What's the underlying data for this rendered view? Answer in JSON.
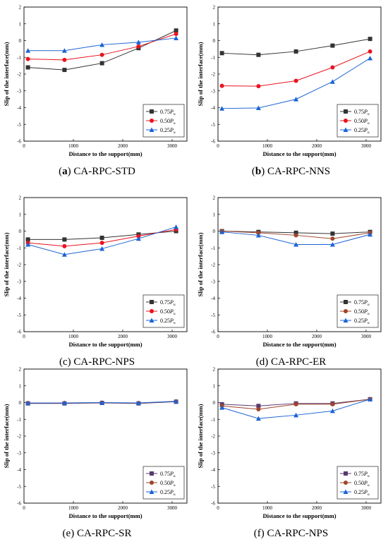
{
  "chart_data": [
    {
      "type": "line",
      "label": "a",
      "name": "CA-RPC-STD",
      "xlabel": "Distance to the support(mm)",
      "ylabel": "Slip of the interface(mm)",
      "xlim": [
        0,
        3300
      ],
      "ylim": [
        -6,
        2
      ],
      "xticks": [
        0,
        1000,
        2000,
        3000
      ],
      "yticks": [
        -6,
        -5,
        -4,
        -3,
        -2,
        -1,
        0,
        1,
        2
      ],
      "x": [
        80,
        820,
        1580,
        2320,
        3080
      ],
      "series": [
        {
          "name": "0.75P_u",
          "color": "#333333",
          "marker": "square",
          "values": [
            -1.6,
            -1.75,
            -1.35,
            -0.45,
            0.6
          ]
        },
        {
          "name": "0.50P_u",
          "color": "#e8141f",
          "marker": "circle",
          "values": [
            -1.1,
            -1.15,
            -0.85,
            -0.35,
            0.4
          ]
        },
        {
          "name": "0.25P_u",
          "color": "#1b63d6",
          "marker": "triangle",
          "values": [
            -0.6,
            -0.6,
            -0.25,
            -0.1,
            0.15
          ]
        }
      ],
      "legend": "bottom-right"
    },
    {
      "type": "line",
      "label": "b",
      "name": "CA-RPC-NNS",
      "xlabel": "Distance to the support(mm)",
      "ylabel": "Slip of the interface(mm)",
      "xlim": [
        0,
        3300
      ],
      "ylim": [
        -6,
        2
      ],
      "xticks": [
        0,
        1000,
        2000,
        3000
      ],
      "yticks": [
        -6,
        -5,
        -4,
        -3,
        -2,
        -1,
        0,
        1,
        2
      ],
      "x": [
        80,
        820,
        1580,
        2320,
        3080
      ],
      "series": [
        {
          "name": "0.75P_u",
          "color": "#333333",
          "marker": "square",
          "values": [
            -0.75,
            -0.85,
            -0.65,
            -0.3,
            0.1
          ]
        },
        {
          "name": "0.50P_u",
          "color": "#e8141f",
          "marker": "circle",
          "values": [
            -2.7,
            -2.72,
            -2.4,
            -1.6,
            -0.65
          ]
        },
        {
          "name": "0.25P_u",
          "color": "#1b63d6",
          "marker": "triangle",
          "values": [
            -4.05,
            -4.02,
            -3.5,
            -2.45,
            -1.05
          ]
        }
      ],
      "legend": "bottom-right"
    },
    {
      "type": "line",
      "label": "c",
      "name": "CA-RPC-NPS",
      "xlabel": "Distance to the support(mm)",
      "ylabel": "Slip of the interface(mm)",
      "xlim": [
        0,
        3300
      ],
      "ylim": [
        -6,
        2
      ],
      "xticks": [
        0,
        1000,
        2000,
        3000
      ],
      "yticks": [
        -6,
        -5,
        -4,
        -3,
        -2,
        -1,
        0,
        1,
        2
      ],
      "x": [
        80,
        820,
        1580,
        2320,
        3080
      ],
      "series": [
        {
          "name": "0.75P_u",
          "color": "#333333",
          "marker": "square",
          "values": [
            -0.5,
            -0.5,
            -0.4,
            -0.2,
            0.0
          ]
        },
        {
          "name": "0.50P_u",
          "color": "#e8141f",
          "marker": "circle",
          "values": [
            -0.7,
            -0.9,
            -0.7,
            -0.3,
            0.1
          ]
        },
        {
          "name": "0.25P_u",
          "color": "#1b63d6",
          "marker": "triangle",
          "values": [
            -0.8,
            -1.4,
            -1.05,
            -0.45,
            0.25
          ]
        }
      ],
      "legend": "bottom-right"
    },
    {
      "type": "line",
      "label": "d",
      "name": "CA-RPC-ER",
      "xlabel": "Distance to the support(mm)",
      "ylabel": "Slip of the interface(mm)",
      "xlim": [
        0,
        3300
      ],
      "ylim": [
        -6,
        2
      ],
      "xticks": [
        0,
        1000,
        2000,
        3000
      ],
      "yticks": [
        -6,
        -5,
        -4,
        -3,
        -2,
        -1,
        0,
        1,
        2
      ],
      "x": [
        80,
        820,
        1580,
        2320,
        3080
      ],
      "series": [
        {
          "name": "0.75P_u",
          "color": "#333333",
          "marker": "square",
          "values": [
            0.0,
            -0.05,
            -0.1,
            -0.15,
            -0.05
          ]
        },
        {
          "name": "0.50P_u",
          "color": "#a0442a",
          "marker": "circle",
          "values": [
            0.0,
            -0.1,
            -0.25,
            -0.45,
            -0.1
          ]
        },
        {
          "name": "0.25P_u",
          "color": "#1b63d6",
          "marker": "triangle",
          "values": [
            -0.05,
            -0.25,
            -0.8,
            -0.8,
            -0.2
          ]
        }
      ],
      "legend": "bottom-right"
    },
    {
      "type": "line",
      "label": "e",
      "name": "CA-RPC-SR",
      "xlabel": "Distance to the support(mm)",
      "ylabel": "Slip of the interface(mm)",
      "xlim": [
        0,
        3300
      ],
      "ylim": [
        -6,
        2
      ],
      "xticks": [
        0,
        1000,
        2000,
        3000
      ],
      "yticks": [
        -6,
        -5,
        -4,
        -3,
        -2,
        -1,
        0,
        1,
        2
      ],
      "x": [
        80,
        820,
        1580,
        2320,
        3080
      ],
      "series": [
        {
          "name": "0.75P_u",
          "color": "#5a3a6e",
          "marker": "square",
          "values": [
            -0.05,
            -0.05,
            -0.02,
            -0.05,
            0.05
          ]
        },
        {
          "name": "0.50P_u",
          "color": "#a0442a",
          "marker": "circle",
          "values": [
            -0.03,
            -0.03,
            -0.01,
            -0.03,
            0.07
          ]
        },
        {
          "name": "0.25P_u",
          "color": "#1b63d6",
          "marker": "triangle",
          "values": [
            -0.02,
            -0.02,
            0.0,
            -0.02,
            0.08
          ]
        }
      ],
      "legend": "bottom-right"
    },
    {
      "type": "line",
      "label": "f",
      "name": "CA-RPC-NPS",
      "xlabel": "Distance to the support(mm)",
      "ylabel": "Slip of the interface(mm)",
      "xlim": [
        0,
        3300
      ],
      "ylim": [
        -6,
        2
      ],
      "xticks": [
        0,
        1000,
        2000,
        3000
      ],
      "yticks": [
        -6,
        -5,
        -4,
        -3,
        -2,
        -1,
        0,
        1,
        2
      ],
      "x": [
        80,
        820,
        1580,
        2320,
        3080
      ],
      "series": [
        {
          "name": "0.75P_u",
          "color": "#5a3a6e",
          "marker": "square",
          "values": [
            -0.1,
            -0.2,
            -0.05,
            -0.05,
            0.2
          ]
        },
        {
          "name": "0.50P_u",
          "color": "#a0442a",
          "marker": "circle",
          "values": [
            -0.2,
            -0.4,
            -0.1,
            -0.1,
            0.2
          ]
        },
        {
          "name": "0.25P_u",
          "color": "#1b63d6",
          "marker": "triangle",
          "values": [
            -0.3,
            -0.95,
            -0.75,
            -0.5,
            0.2
          ]
        }
      ],
      "legend": "bottom-right"
    }
  ]
}
